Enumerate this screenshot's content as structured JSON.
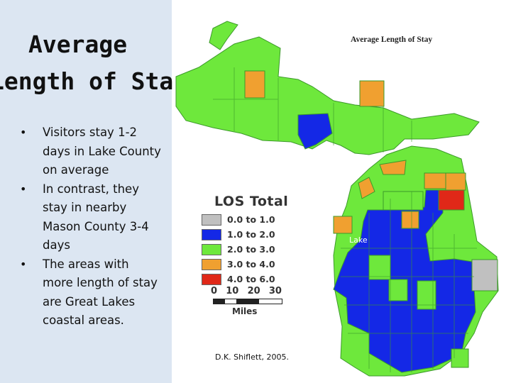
{
  "slide": {
    "title_line1": "Average",
    "title_line2": "Length of Stay",
    "bullets": [
      "Visitors stay 1-2 days in Lake County on average",
      "In contrast, they stay in nearby Mason County 3-4 days",
      "The areas with more length of stay are Great Lakes coastal areas."
    ],
    "credit": "D.K. Shiflett, 2005."
  },
  "map": {
    "title": "Average Length of Stay",
    "lake_label": "Lake",
    "legend": {
      "title": "LOS Total",
      "items": [
        {
          "label": "0.0 to 1.0",
          "color": "#c0c0c0"
        },
        {
          "label": "1.0 to 2.0",
          "color": "#1428e6"
        },
        {
          "label": "2.0 to 3.0",
          "color": "#6ee83c"
        },
        {
          "label": "3.0 to 4.0",
          "color": "#f0a030"
        },
        {
          "label": "4.0 to 6.0",
          "color": "#e02818"
        }
      ]
    },
    "scale": {
      "ticks": [
        "0",
        "10",
        "20",
        "30"
      ],
      "unit": "Miles"
    }
  }
}
